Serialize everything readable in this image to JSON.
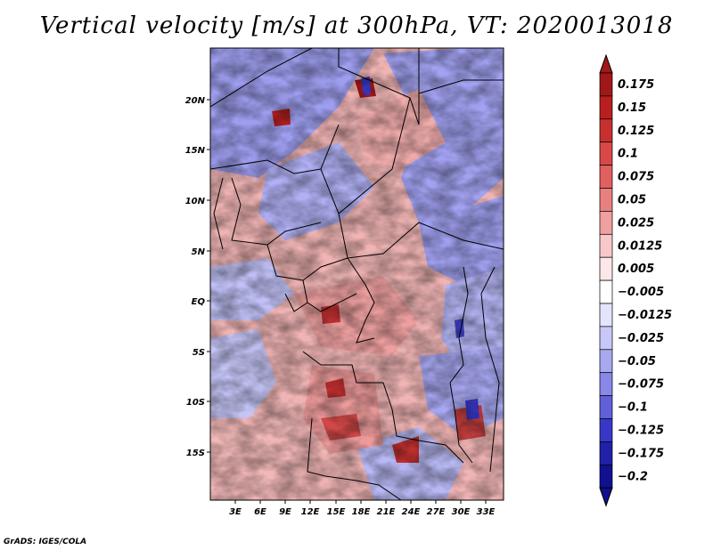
{
  "title": "Vertical velocity [m/s] at 300hPa, VT: 2020013018",
  "credit": "GrADS: IGES/COLA",
  "map": {
    "lat_labels": [
      "20N",
      "15N",
      "10N",
      "5N",
      "EQ",
      "5S",
      "10S",
      "15S"
    ],
    "lon_labels": [
      "3E",
      "6E",
      "9E",
      "12E",
      "15E",
      "18E",
      "21E",
      "24E",
      "27E",
      "30E",
      "33E"
    ]
  },
  "colorbar": {
    "levels": [
      "0.175",
      "0.15",
      "0.125",
      "0.1",
      "0.075",
      "0.05",
      "0.025",
      "0.0125",
      "0.005",
      "-0.005",
      "-0.0125",
      "-0.025",
      "-0.05",
      "-0.075",
      "-0.1",
      "-0.125",
      "-0.175",
      "-0.2"
    ],
    "colors": [
      "#a01818",
      "#b82020",
      "#c83030",
      "#d84848",
      "#e06060",
      "#e88080",
      "#f0a0a0",
      "#f8c8c8",
      "#fce8e8",
      "#ffffff",
      "#e4e4fc",
      "#c8c8f8",
      "#a8a8f0",
      "#8888e8",
      "#6060d8",
      "#3838c8",
      "#2020a8",
      "#101090"
    ]
  }
}
